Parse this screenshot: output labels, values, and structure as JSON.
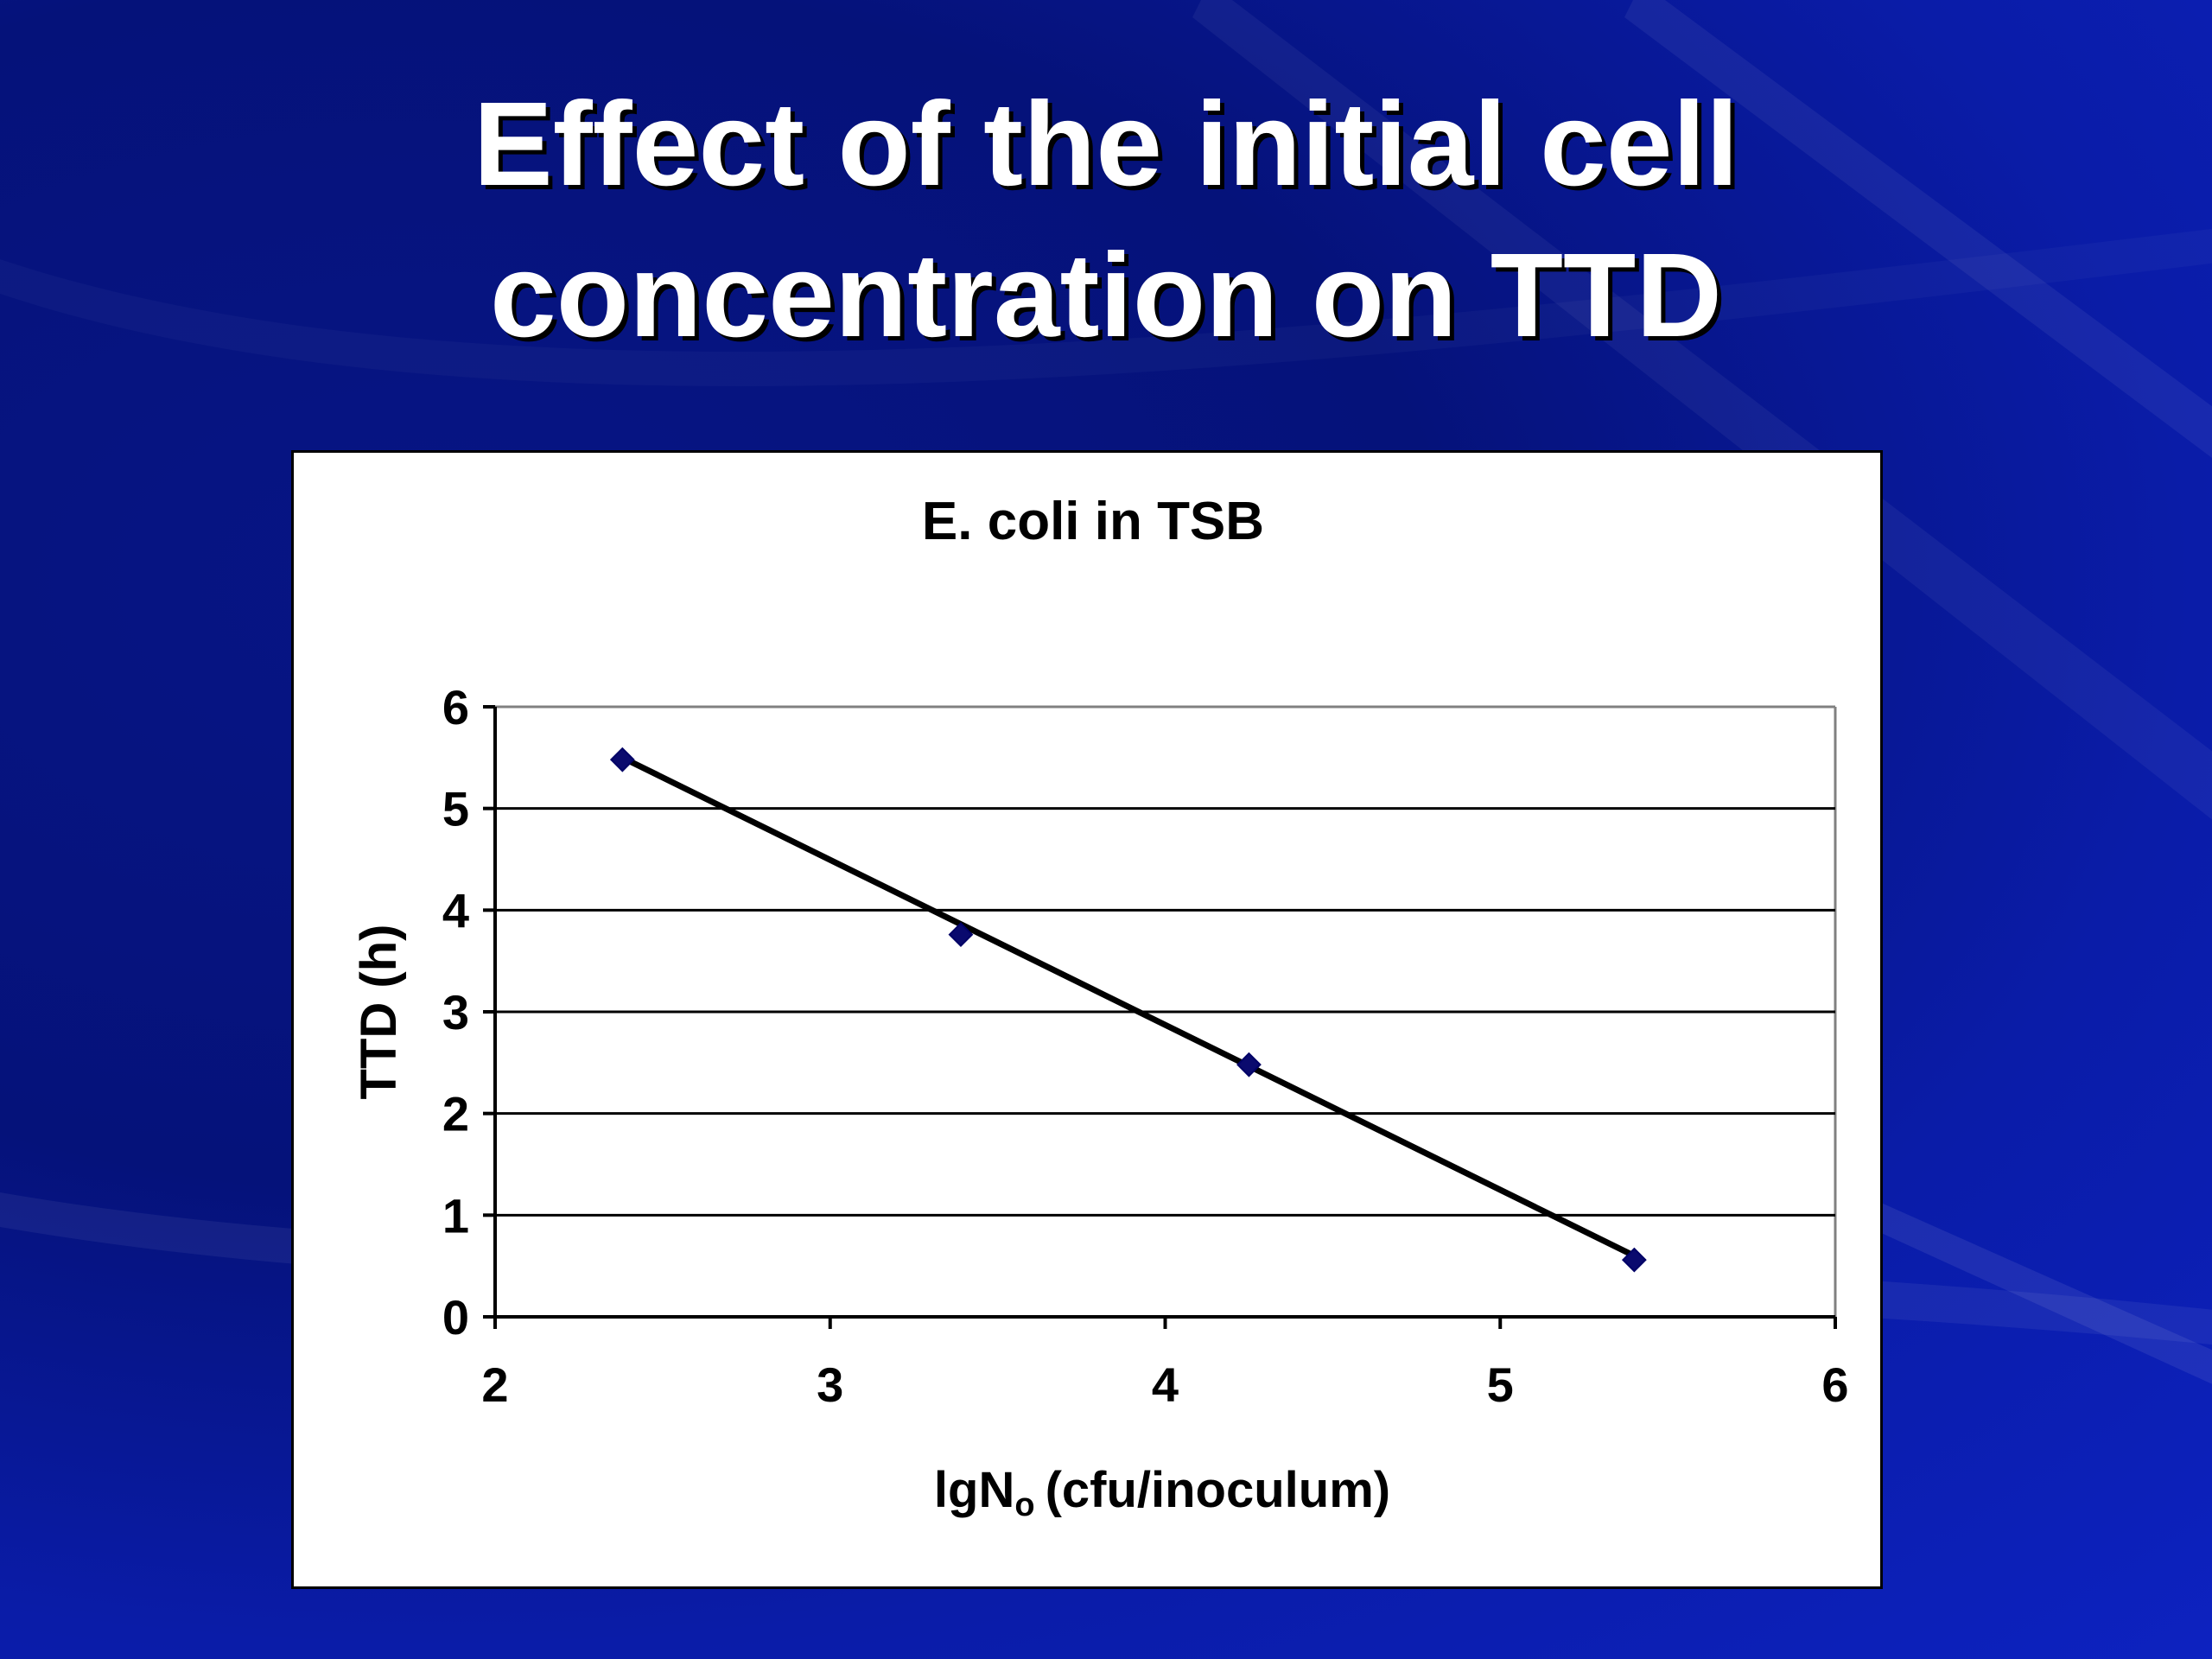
{
  "slide": {
    "title_line1": "Effect of the initial cell",
    "title_line2": "concentration on TTD"
  },
  "colors": {
    "background": "#0a1aa0",
    "marker": "#0a0a6e",
    "line": "#000000"
  },
  "chart_data": {
    "type": "scatter",
    "title": "E. coli in TSB",
    "xlabel": "lgN",
    "xlabel_subscript": "o",
    "xlabel_unit": "(cfu/inoculum)",
    "ylabel": "TTD (h)",
    "xlim": [
      2,
      6
    ],
    "ylim": [
      0,
      6
    ],
    "xticks": [
      "2",
      "3",
      "4",
      "5",
      "6"
    ],
    "yticks": [
      "0",
      "1",
      "2",
      "3",
      "4",
      "5",
      "6"
    ],
    "grid": "horizontal",
    "marker": "diamond",
    "series": [
      {
        "points": [
          {
            "x": 2.38,
            "y": 5.48
          },
          {
            "x": 3.39,
            "y": 3.76
          },
          {
            "x": 4.25,
            "y": 2.48
          },
          {
            "x": 5.4,
            "y": 0.56
          }
        ]
      }
    ],
    "trendline": {
      "type": "linear",
      "from": {
        "x": 2.38,
        "y": 5.5
      },
      "to": {
        "x": 5.4,
        "y": 0.6
      }
    }
  }
}
